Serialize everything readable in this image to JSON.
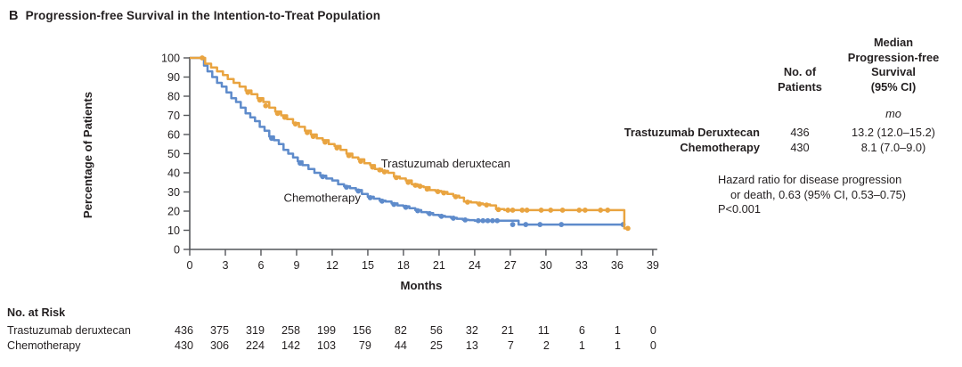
{
  "panel": {
    "label": "B",
    "title": "Progression-free Survival in the Intention-to-Treat Population"
  },
  "chart_data": {
    "type": "line",
    "subtype": "kaplan-meier-step",
    "title": "Progression-free Survival in the Intention-to-Treat Population",
    "xlabel": "Months",
    "ylabel": "Percentage of Patients",
    "xlim": [
      0,
      39
    ],
    "ylim": [
      0,
      100
    ],
    "x_ticks": [
      0,
      3,
      6,
      9,
      12,
      15,
      18,
      21,
      24,
      27,
      30,
      33,
      36,
      39
    ],
    "y_ticks": [
      100,
      90,
      80,
      70,
      60,
      50,
      40,
      30,
      20,
      10,
      0
    ],
    "grid": false,
    "axis_color": "#54565A",
    "series": [
      {
        "name": "Chemotherapy",
        "color": "#5E8BCB",
        "label_anchor": "end",
        "label_x": 14.4,
        "label_y": 25.0,
        "end_month": 36.5,
        "points": [
          [
            0,
            100
          ],
          [
            0.9,
            100
          ],
          [
            1.2,
            96
          ],
          [
            1.5,
            93
          ],
          [
            1.9,
            90
          ],
          [
            2.3,
            87
          ],
          [
            2.7,
            85
          ],
          [
            3.1,
            82
          ],
          [
            3.5,
            79
          ],
          [
            3.9,
            77
          ],
          [
            4.3,
            74
          ],
          [
            4.7,
            71
          ],
          [
            5.1,
            69
          ],
          [
            5.5,
            67
          ],
          [
            5.9,
            64
          ],
          [
            6.3,
            62
          ],
          [
            6.7,
            59
          ],
          [
            7.1,
            57
          ],
          [
            7.5,
            55
          ],
          [
            7.9,
            52
          ],
          [
            8.3,
            50
          ],
          [
            8.7,
            48
          ],
          [
            9.1,
            46
          ],
          [
            9.5,
            44
          ],
          [
            10,
            42
          ],
          [
            10.5,
            40
          ],
          [
            11,
            38.5
          ],
          [
            11.5,
            37
          ],
          [
            12,
            36
          ],
          [
            12.5,
            34
          ],
          [
            13,
            33
          ],
          [
            13.5,
            32
          ],
          [
            14,
            31
          ],
          [
            14.5,
            29
          ],
          [
            15,
            27.5
          ],
          [
            15.5,
            26.5
          ],
          [
            16,
            25.5
          ],
          [
            16.5,
            25
          ],
          [
            17,
            24
          ],
          [
            17.5,
            23
          ],
          [
            18,
            22.5
          ],
          [
            18.5,
            21.5
          ],
          [
            19,
            20.5
          ],
          [
            19.5,
            19.5
          ],
          [
            20,
            19
          ],
          [
            20.5,
            18
          ],
          [
            21,
            17.5
          ],
          [
            21.5,
            17
          ],
          [
            22,
            16.5
          ],
          [
            22.5,
            16
          ],
          [
            23,
            15.5
          ],
          [
            23.5,
            15.3
          ],
          [
            24,
            15
          ],
          [
            27.7,
            13
          ]
        ],
        "censor_marks": [
          [
            6.9,
            58
          ],
          [
            9.3,
            45
          ],
          [
            11.2,
            38
          ],
          [
            13.2,
            32.5
          ],
          [
            14.2,
            30.5
          ],
          [
            15.2,
            27
          ],
          [
            16.2,
            25.2
          ],
          [
            17.2,
            23.5
          ],
          [
            18.2,
            22
          ],
          [
            19.2,
            20.2
          ],
          [
            20.2,
            18.7
          ],
          [
            21.2,
            17.3
          ],
          [
            22.2,
            16.3
          ],
          [
            23.2,
            15.4
          ],
          [
            24.3,
            15
          ],
          [
            24.7,
            15
          ],
          [
            25.1,
            15
          ],
          [
            25.5,
            15
          ],
          [
            25.9,
            15
          ],
          [
            27.2,
            13
          ],
          [
            28.3,
            13
          ],
          [
            29.5,
            13
          ],
          [
            31.3,
            13
          ],
          [
            36.5,
            13
          ]
        ]
      },
      {
        "name": "Trastuzumab deruxtecan",
        "color": "#E9A440",
        "label_anchor": "start",
        "label_x": 16.1,
        "label_y": 42.8,
        "end_month": 37.0,
        "points": [
          [
            0,
            100
          ],
          [
            1.0,
            100
          ],
          [
            1.3,
            97
          ],
          [
            1.8,
            95
          ],
          [
            2.3,
            93
          ],
          [
            2.8,
            91
          ],
          [
            3.2,
            89
          ],
          [
            3.7,
            87
          ],
          [
            4.2,
            85
          ],
          [
            4.7,
            83
          ],
          [
            5.2,
            81
          ],
          [
            5.7,
            79
          ],
          [
            6.2,
            77
          ],
          [
            6.7,
            74
          ],
          [
            7.2,
            72
          ],
          [
            7.7,
            70
          ],
          [
            8.2,
            68
          ],
          [
            8.7,
            66
          ],
          [
            9.2,
            64
          ],
          [
            9.7,
            62
          ],
          [
            10.2,
            60
          ],
          [
            10.7,
            58
          ],
          [
            11.2,
            57
          ],
          [
            11.7,
            55
          ],
          [
            12.2,
            54
          ],
          [
            12.7,
            52
          ],
          [
            13.2,
            50
          ],
          [
            13.7,
            48
          ],
          [
            14.2,
            47
          ],
          [
            14.7,
            45
          ],
          [
            15.2,
            44
          ],
          [
            15.6,
            42
          ],
          [
            16.2,
            41
          ],
          [
            16.7,
            40
          ],
          [
            17.2,
            38
          ],
          [
            17.7,
            37
          ],
          [
            18.2,
            36
          ],
          [
            18.7,
            34
          ],
          [
            19.2,
            33
          ],
          [
            19.7,
            32.5
          ],
          [
            20.2,
            31
          ],
          [
            20.7,
            30.5
          ],
          [
            21.2,
            30
          ],
          [
            21.7,
            29
          ],
          [
            22.2,
            28
          ],
          [
            22.7,
            27
          ],
          [
            23.1,
            25
          ],
          [
            23.7,
            24.5
          ],
          [
            24.2,
            24
          ],
          [
            24.7,
            23.5
          ],
          [
            25.3,
            23
          ],
          [
            25.8,
            21
          ],
          [
            26.5,
            20.5
          ],
          [
            36.6,
            11
          ]
        ],
        "censor_marks": [
          [
            1.05,
            100
          ],
          [
            4.9,
            82
          ],
          [
            5.9,
            78
          ],
          [
            6.4,
            75
          ],
          [
            7.4,
            71
          ],
          [
            8.0,
            69
          ],
          [
            8.9,
            65.5
          ],
          [
            9.9,
            61
          ],
          [
            10.4,
            59
          ],
          [
            11.4,
            56
          ],
          [
            12.4,
            53
          ],
          [
            13.4,
            49
          ],
          [
            14.4,
            46
          ],
          [
            15.4,
            43
          ],
          [
            16.0,
            41.5
          ],
          [
            16.4,
            40.5
          ],
          [
            17.4,
            37.5
          ],
          [
            18.4,
            35
          ],
          [
            19.0,
            33.5
          ],
          [
            19.4,
            33
          ],
          [
            20.0,
            31.5
          ],
          [
            20.9,
            30.2
          ],
          [
            21.4,
            29.5
          ],
          [
            22.4,
            27.5
          ],
          [
            23.4,
            24.7
          ],
          [
            24.4,
            23.7
          ],
          [
            25.0,
            23.2
          ],
          [
            26.0,
            20.8
          ],
          [
            26.8,
            20.5
          ],
          [
            27.2,
            20.5
          ],
          [
            28.0,
            20.5
          ],
          [
            28.4,
            20.5
          ],
          [
            29.6,
            20.5
          ],
          [
            30.4,
            20.5
          ],
          [
            31.4,
            20.5
          ],
          [
            32.8,
            20.5
          ],
          [
            33.3,
            20.5
          ],
          [
            34.6,
            20.5
          ],
          [
            35.2,
            20.5
          ],
          [
            36.9,
            11
          ]
        ]
      }
    ]
  },
  "summary_table": {
    "patients_header_lines": [
      "No. of",
      "Patients"
    ],
    "median_header_lines": [
      "Median",
      "Progression-free",
      "Survival",
      "(95% CI)"
    ],
    "unit": "mo",
    "rows": [
      {
        "label": "Trastuzumab Deruxtecan",
        "patients": "436",
        "median": "13.2 (12.0–15.2)"
      },
      {
        "label": "Chemotherapy",
        "patients": "430",
        "median": "8.1 (7.0–9.0)"
      }
    ]
  },
  "hazard_note": {
    "line1": "Hazard ratio for disease progression",
    "line2": "or death, 0.63 (95% CI, 0.53–0.75)",
    "line3": "P<0.001"
  },
  "at_risk": {
    "title": "No. at Risk",
    "months": [
      0,
      3,
      6,
      9,
      12,
      15,
      18,
      21,
      24,
      27,
      30,
      33,
      36,
      39
    ],
    "rows": [
      {
        "label": "Trastuzumab deruxtecan",
        "values": [
          436,
          375,
          319,
          258,
          199,
          156,
          82,
          56,
          32,
          21,
          11,
          6,
          1,
          0
        ]
      },
      {
        "label": "Chemotherapy",
        "values": [
          430,
          306,
          224,
          142,
          103,
          79,
          44,
          25,
          13,
          7,
          2,
          1,
          1,
          0
        ]
      }
    ]
  }
}
